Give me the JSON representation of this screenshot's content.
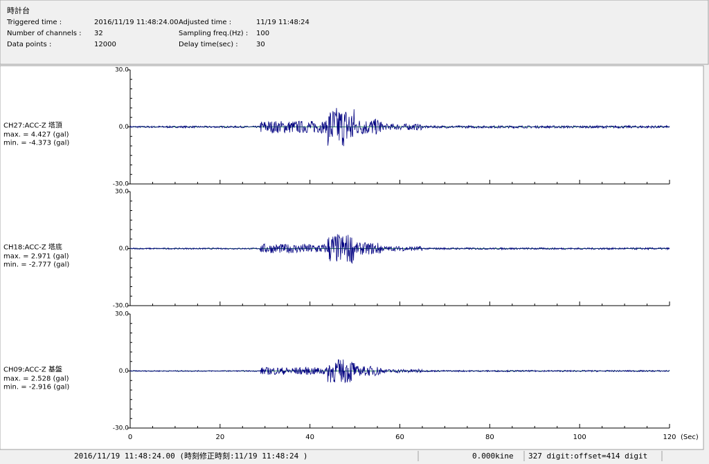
{
  "header": {
    "title": "時計台",
    "rows": [
      [
        "Triggered time :",
        "2016/11/19 11:48:24.00",
        "Adjusted time :",
        "11/19 11:48:24"
      ],
      [
        "Number of channels :",
        "32",
        "Sampling freq.(Hz) :",
        "100"
      ],
      [
        "Data points :",
        "12000",
        "Delay time(sec) :",
        "30"
      ]
    ]
  },
  "plot": {
    "xlim": [
      0,
      120
    ],
    "ylim": [
      -30,
      30
    ],
    "xticks": [
      0,
      20,
      40,
      60,
      80,
      100,
      120
    ],
    "xunit": "(Sec)",
    "yticks": [
      {
        "value": 30,
        "label": "30.0"
      },
      {
        "value": 0,
        "label": "0.0"
      },
      {
        "value": -30,
        "label": "-30.0"
      }
    ],
    "channels": [
      {
        "name": "CH27:ACC-Z 塔頂",
        "max": "max. = 4.427 (gal)",
        "min": "min. = -4.373 (gal)"
      },
      {
        "name": "CH18:ACC-Z 塔底",
        "max": "max. = 2.971 (gal)",
        "min": "min. = -2.777 (gal)"
      },
      {
        "name": "CH09:ACC-Z 基盤",
        "max": "max. = 2.528 (gal)",
        "min": "min. = -2.916 (gal)"
      }
    ]
  },
  "status": {
    "left": "2016/11/19 11:48:24.00  (時刻修正時刻:11/19 11:48:24  )",
    "center": "0.000kine",
    "right": "327 digit:offset=414 digit"
  }
}
